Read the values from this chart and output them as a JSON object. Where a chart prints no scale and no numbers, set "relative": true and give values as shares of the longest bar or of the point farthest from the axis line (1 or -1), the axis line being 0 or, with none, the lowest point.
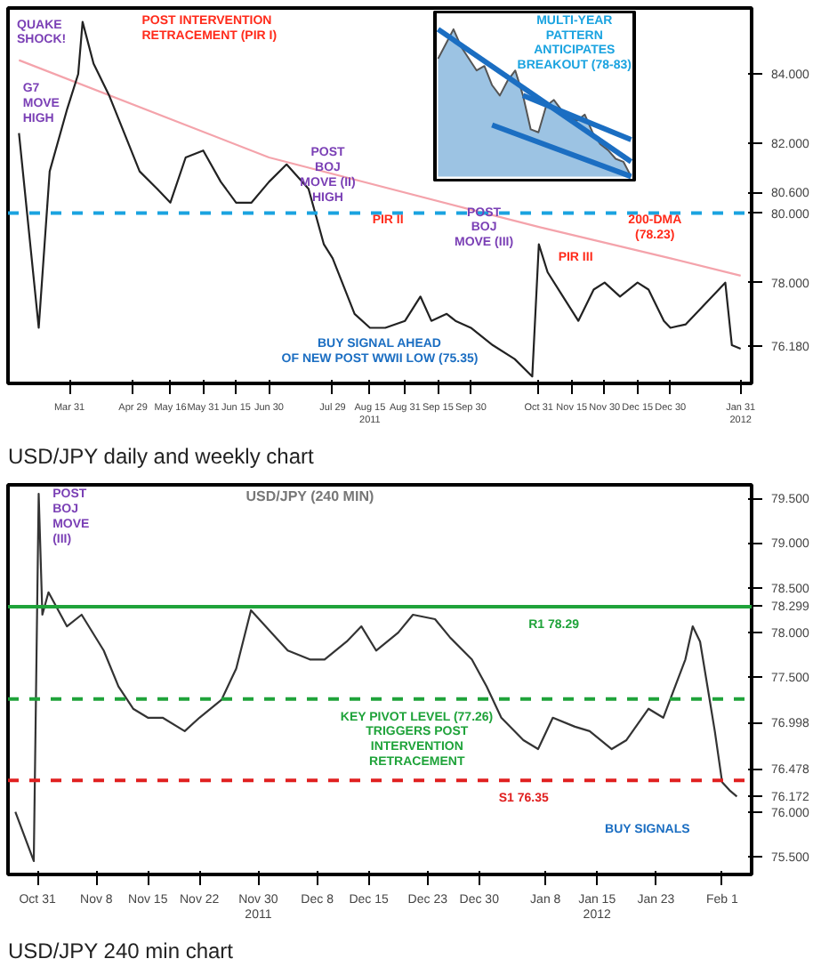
{
  "chart_data": [
    {
      "type": "line",
      "xlim": [
        "2011-03-03",
        "2012-02-05"
      ],
      "xticks": [
        {
          "value": "2011-03-31",
          "label": "Mar 31"
        },
        {
          "value": "2011-04-29",
          "label": "Apr 29"
        },
        {
          "value": "2011-05-16",
          "label": "May 16"
        },
        {
          "value": "2011-05-31",
          "label": "May 31"
        },
        {
          "value": "2011-06-15",
          "label": "Jun 15"
        },
        {
          "value": "2011-06-30",
          "label": "Jun 30"
        },
        {
          "value": "2011-07-29",
          "label": "Jul 29"
        },
        {
          "value": "2011-08-15",
          "label": "Aug 15\n2011"
        },
        {
          "value": "2011-08-31",
          "label": "Aug 31"
        },
        {
          "value": "2011-09-15",
          "label": "Sep 15"
        },
        {
          "value": "2011-09-30",
          "label": "Sep 30"
        },
        {
          "value": "2011-10-31",
          "label": "Oct 31"
        },
        {
          "value": "2011-11-15",
          "label": "Nov 15"
        },
        {
          "value": "2011-11-30",
          "label": "Nov 30"
        },
        {
          "value": "2011-12-15",
          "label": "Dec 15"
        },
        {
          "value": "2011-12-30",
          "label": "Dec 30"
        },
        {
          "value": "2012-01-31",
          "label": "Jan 31\n2012"
        }
      ],
      "ylim": [
        75.1,
        85.9
      ],
      "yticks": [
        {
          "value": 76.18,
          "label": "76.180"
        },
        {
          "value": 78,
          "label": "78.000"
        },
        {
          "value": 80,
          "label": "80.000"
        },
        {
          "value": 80.6,
          "label": "80.600"
        },
        {
          "value": 82,
          "label": "82.000"
        },
        {
          "value": 84,
          "label": "84.000"
        }
      ],
      "grid": false,
      "marker": "none",
      "line_style": "solid",
      "series": [
        {
          "color": "#f4a3ab",
          "x": [
            "2011-03-08",
            "2011-06-30",
            "2011-09-30",
            "2011-10-31",
            "2011-12-30",
            "2012-01-31"
          ],
          "values": [
            84.4,
            81.6,
            80.1,
            79.6,
            78.7,
            78.2
          ]
        },
        {
          "color": "#222222",
          "x": [
            "2011-03-08",
            "2011-03-17",
            "2011-03-22",
            "2011-03-30",
            "2011-04-04",
            "2011-04-06",
            "2011-04-11",
            "2011-04-18",
            "2011-04-25",
            "2011-05-02",
            "2011-05-10",
            "2011-05-16",
            "2011-05-23",
            "2011-05-31",
            "2011-06-08",
            "2011-06-15",
            "2011-06-22",
            "2011-06-30",
            "2011-07-08",
            "2011-07-18",
            "2011-07-25",
            "2011-07-29",
            "2011-08-08",
            "2011-08-15",
            "2011-08-22",
            "2011-08-31",
            "2011-09-07",
            "2011-09-12",
            "2011-09-19",
            "2011-09-23",
            "2011-09-30",
            "2011-10-10",
            "2011-10-20",
            "2011-10-28",
            "2011-10-31",
            "2011-11-04",
            "2011-11-11",
            "2011-11-18",
            "2011-11-25",
            "2011-11-30",
            "2011-12-07",
            "2011-12-15",
            "2011-12-20",
            "2011-12-27",
            "2011-12-30",
            "2012-01-06",
            "2012-01-24",
            "2012-01-27",
            "2012-01-31"
          ],
          "values": [
            82.3,
            76.7,
            81.2,
            83.0,
            84.0,
            85.5,
            84.3,
            83.4,
            82.3,
            81.2,
            80.7,
            80.3,
            81.6,
            81.8,
            80.9,
            80.3,
            80.3,
            80.9,
            81.4,
            80.7,
            79.1,
            78.7,
            77.1,
            76.7,
            76.7,
            76.9,
            77.6,
            76.9,
            77.1,
            76.9,
            76.7,
            76.2,
            75.8,
            75.3,
            79.1,
            78.3,
            77.6,
            76.9,
            77.8,
            78.0,
            77.6,
            78.0,
            77.8,
            76.9,
            76.7,
            76.8,
            78.0,
            76.2,
            76.1
          ]
        }
      ],
      "ref_lines": [
        {
          "axis": "y",
          "value": 80,
          "color": "#1aa3e0",
          "line_style": "dashed"
        }
      ],
      "annotations": [
        "QUAKE\nSHOCK!",
        "G7\nMOVE\nHIGH",
        "POST INTERVENTION\nRETRACEMENT (PIR I)",
        "POST\nBOJ\nMOVE (II)\nHIGH",
        "PIR II",
        "POST\nBOJ\nMOVE (III)",
        "PIR III",
        "200-DMA\n(78.23)",
        "BUY SIGNAL AHEAD\nOF NEW POST WWII LOW (75.35)",
        "USD/JPY daily and weekly chart"
      ]
    },
    {
      "type": "area",
      "relative": true,
      "categories": [
        null,
        null,
        null,
        null,
        null,
        null,
        null,
        null,
        null,
        null,
        null,
        null,
        null,
        null,
        null,
        null,
        null,
        null,
        null,
        null,
        null,
        null,
        null,
        null,
        null,
        null
      ],
      "series": [
        {
          "color": "#9cc3e3",
          "values": [
            0.8,
            0.9,
            1.0,
            0.88,
            0.8,
            0.72,
            0.75,
            0.62,
            0.55,
            0.65,
            0.72,
            0.55,
            0.32,
            0.3,
            0.48,
            0.52,
            0.45,
            0.4,
            0.38,
            0.42,
            0.3,
            0.22,
            0.18,
            0.12,
            0.1,
            0.0
          ]
        },
        {
          "type": "line",
          "color": "#1b6ec2",
          "values": [
            1.0,
            null,
            null,
            null,
            null,
            null,
            null,
            null,
            null,
            null,
            null,
            null,
            null,
            null,
            null,
            null,
            null,
            null,
            null,
            null,
            null,
            null,
            null,
            null,
            null,
            0.1
          ]
        },
        {
          "type": "line",
          "color": "#1b6ec2",
          "values": [
            null,
            null,
            null,
            null,
            null,
            null,
            null,
            null,
            null,
            null,
            null,
            0.55,
            null,
            null,
            null,
            null,
            null,
            null,
            null,
            null,
            null,
            null,
            null,
            null,
            null,
            0.25
          ]
        },
        {
          "type": "line",
          "color": "#1b6ec2",
          "values": [
            null,
            null,
            null,
            null,
            null,
            null,
            null,
            0.35,
            null,
            null,
            null,
            null,
            null,
            null,
            null,
            null,
            null,
            null,
            null,
            null,
            null,
            null,
            null,
            null,
            null,
            0.0
          ]
        }
      ],
      "annotations": [
        "MULTI-YEAR\nPATTERN\nANTICIPATES\nBREAKOUT (78-83)"
      ]
    },
    {
      "type": "line",
      "title": "USD/JPY (240 MIN)",
      "xlim": [
        "2011-10-27",
        "2012-02-05"
      ],
      "xticks": [
        {
          "value": "2011-10-31",
          "label": "Oct 31"
        },
        {
          "value": "2011-11-08",
          "label": "Nov 8"
        },
        {
          "value": "2011-11-15",
          "label": "Nov 15"
        },
        {
          "value": "2011-11-22",
          "label": "Nov 22"
        },
        {
          "value": "2011-11-30",
          "label": "Nov 30\n2011"
        },
        {
          "value": "2011-12-08",
          "label": "Dec 8"
        },
        {
          "value": "2011-12-15",
          "label": "Dec 15"
        },
        {
          "value": "2011-12-23",
          "label": "Dec 23"
        },
        {
          "value": "2011-12-30",
          "label": "Dec 30"
        },
        {
          "value": "2012-01-08",
          "label": "Jan 8"
        },
        {
          "value": "2012-01-15",
          "label": "Jan 15\n2012"
        },
        {
          "value": "2012-01-23",
          "label": "Jan 23"
        },
        {
          "value": "2012-02-01",
          "label": "Feb 1"
        }
      ],
      "ylim": [
        75.3,
        79.65
      ],
      "yticks": [
        {
          "value": 75.5,
          "label": "75.500"
        },
        {
          "value": 76,
          "label": "76.000"
        },
        {
          "value": 76.172,
          "label": "76.172"
        },
        {
          "value": 76.478,
          "label": "76.478"
        },
        {
          "value": 76.998,
          "label": "76.998"
        },
        {
          "value": 77.5,
          "label": "77.500"
        },
        {
          "value": 78,
          "label": "78.000"
        },
        {
          "value": 78.299,
          "label": "78.299"
        },
        {
          "value": 78.5,
          "label": "78.500"
        },
        {
          "value": 79,
          "label": "79.000"
        },
        {
          "value": 79.5,
          "label": "79.500"
        }
      ],
      "grid": false,
      "marker": "none",
      "line_style": "solid",
      "series": [
        {
          "color": "#333333",
          "x": [
            "2011-10-28T00:00",
            "2011-10-30T12:00",
            "2011-10-31T04:00",
            "2011-10-31T16:00",
            "2011-11-01T12:00",
            "2011-11-04",
            "2011-11-06",
            "2011-11-09",
            "2011-11-11",
            "2011-11-13",
            "2011-11-15",
            "2011-11-17",
            "2011-11-20",
            "2011-11-22",
            "2011-11-25",
            "2011-11-27",
            "2011-11-29",
            "2011-12-02",
            "2011-12-04",
            "2011-12-07",
            "2011-12-09",
            "2011-12-12",
            "2011-12-14",
            "2011-12-16",
            "2011-12-19",
            "2011-12-21",
            "2011-12-24",
            "2011-12-26",
            "2011-12-29",
            "2011-12-31",
            "2012-01-02",
            "2012-01-05",
            "2012-01-07",
            "2012-01-09",
            "2012-01-12",
            "2012-01-14",
            "2012-01-17",
            "2012-01-19",
            "2012-01-22",
            "2012-01-24",
            "2012-01-27",
            "2012-01-28",
            "2012-01-29",
            "2012-01-30",
            "2012-01-31",
            "2012-02-01",
            "2012-02-02",
            "2012-02-03"
          ],
          "values": [
            76.0,
            75.45,
            79.55,
            78.2,
            78.45,
            78.07,
            78.2,
            77.8,
            77.4,
            77.15,
            77.05,
            77.05,
            76.9,
            77.05,
            77.25,
            77.6,
            78.25,
            77.98,
            77.8,
            77.7,
            77.7,
            77.9,
            78.07,
            77.8,
            78.0,
            78.2,
            78.15,
            77.95,
            77.7,
            77.4,
            77.05,
            76.8,
            76.7,
            77.05,
            76.95,
            76.9,
            76.7,
            76.8,
            77.15,
            77.05,
            77.7,
            78.07,
            77.9,
            77.4,
            76.9,
            76.33,
            76.24,
            76.17
          ]
        }
      ],
      "ref_lines": [
        {
          "axis": "y",
          "value": 78.29,
          "color": "#1fa33a",
          "line_style": "solid",
          "label": "R1 78.29"
        },
        {
          "axis": "y",
          "value": 77.26,
          "color": "#1fa33a",
          "line_style": "dashed",
          "label": "KEY PIVOT LEVEL (77.26)\nTRIGGERS POST\nINTERVENTION\nRETRACEMENT"
        },
        {
          "axis": "y",
          "value": 76.35,
          "color": "#e02020",
          "line_style": "dashed",
          "label": "S1 76.35"
        }
      ],
      "annotations": [
        "POST\nBOJ\nMOVE\n(III)",
        "BUY SIGNALS",
        "USD/JPY 240 min chart"
      ]
    }
  ]
}
